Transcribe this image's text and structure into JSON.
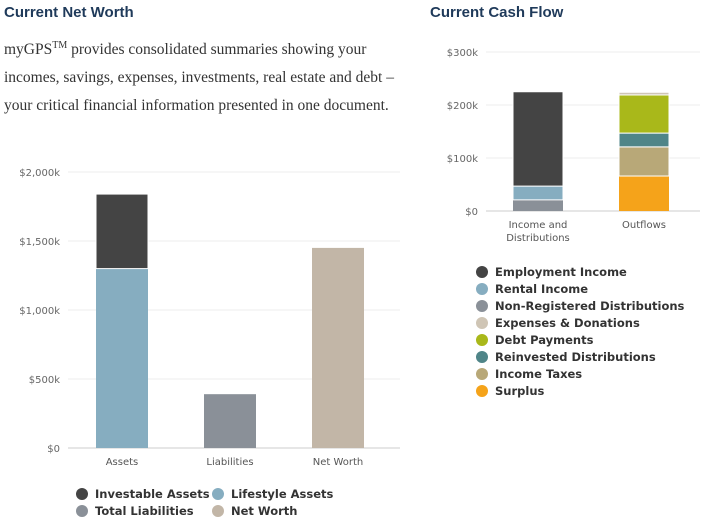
{
  "net_worth_title": "Current Net Worth",
  "cash_flow_title": "Current Cash Flow",
  "intro": {
    "brand": "myGPS",
    "tm": "TM",
    "text": " provides consolidated summaries showing your incomes, savings, expenses, investments, real estate and debt – your critical financial information presented in one document."
  },
  "chart_data": [
    {
      "type": "bar",
      "stacked": true,
      "title": "Current Net Worth",
      "ylim": [
        0,
        2000
      ],
      "yticks": [
        "$0",
        "$500k",
        "$1,000k",
        "$1,500k",
        "$2,000k"
      ],
      "ytick_values": [
        0,
        500,
        1000,
        1500,
        2000
      ],
      "categories": [
        "Assets",
        "Liabilities",
        "Net Worth"
      ],
      "series": [
        {
          "name": "Lifestyle Assets",
          "color": "#86adc0",
          "values": [
            1300,
            0,
            0
          ]
        },
        {
          "name": "Investable Assets",
          "color": "#444444",
          "values": [
            540,
            0,
            0
          ]
        },
        {
          "name": "Total Liabilities",
          "color": "#8a9098",
          "values": [
            0,
            390,
            0
          ]
        },
        {
          "name": "Net Worth",
          "color": "#c2b6a7",
          "values": [
            0,
            0,
            1450
          ]
        }
      ],
      "legend": [
        "Investable Assets",
        "Lifestyle Assets",
        "Total Liabilities",
        "Net Worth"
      ],
      "legend_placement": "bottom"
    },
    {
      "type": "bar",
      "stacked": true,
      "title": "Current Cash Flow",
      "ylim": [
        0,
        300
      ],
      "yticks": [
        "$0",
        "$100k",
        "$200k",
        "$300k"
      ],
      "ytick_values": [
        0,
        100,
        200,
        300
      ],
      "categories": [
        "Income and|Distributions",
        "Outflows"
      ],
      "series": [
        {
          "name": "Non-Registered Distributions",
          "color": "#8a9098",
          "values": [
            21,
            0
          ]
        },
        {
          "name": "Rental Income",
          "color": "#86adc0",
          "values": [
            26,
            0
          ]
        },
        {
          "name": "Employment Income",
          "color": "#444444",
          "values": [
            178,
            0
          ]
        },
        {
          "name": "Surplus",
          "color": "#f5a31a",
          "values": [
            0,
            66
          ]
        },
        {
          "name": "Income Taxes",
          "color": "#b8a878",
          "values": [
            0,
            55
          ]
        },
        {
          "name": "Reinvested Distributions",
          "color": "#4f8588",
          "values": [
            0,
            26
          ]
        },
        {
          "name": "Debt Payments",
          "color": "#a9b81a",
          "values": [
            0,
            72
          ]
        },
        {
          "name": "Expenses & Donations",
          "color": "#cfc5b5",
          "values": [
            0,
            5
          ]
        }
      ],
      "legend": [
        "Employment Income",
        "Rental Income",
        "Non-Registered Distributions",
        "Expenses & Donations",
        "Debt Payments",
        "Reinvested Distributions",
        "Income Taxes",
        "Surplus"
      ],
      "legend_placement": "bottom"
    }
  ]
}
